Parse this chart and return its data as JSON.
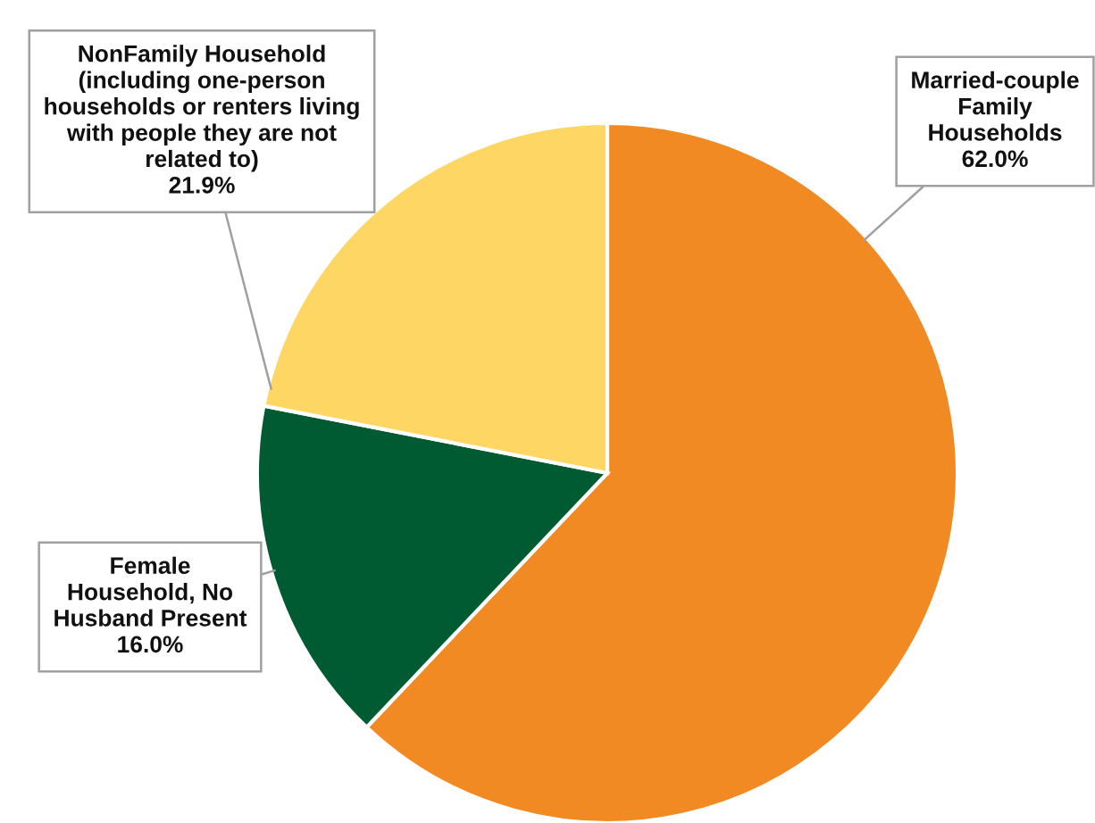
{
  "chart_data": {
    "type": "pie",
    "categories": [
      "Married-couple\nFamily\nHouseholds",
      "Female\nHousehold, No\nHusband Present",
      "NonFamily Household\n(including one-person\nhouseholds or renters living\nwith people they are not\nrelated to)"
    ],
    "values": [
      62.0,
      16.0,
      21.9
    ],
    "colors": [
      "#f28a24",
      "#005a32",
      "#fdd663"
    ],
    "value_labels": [
      "62.0%",
      "16.0%",
      "21.9%"
    ]
  }
}
